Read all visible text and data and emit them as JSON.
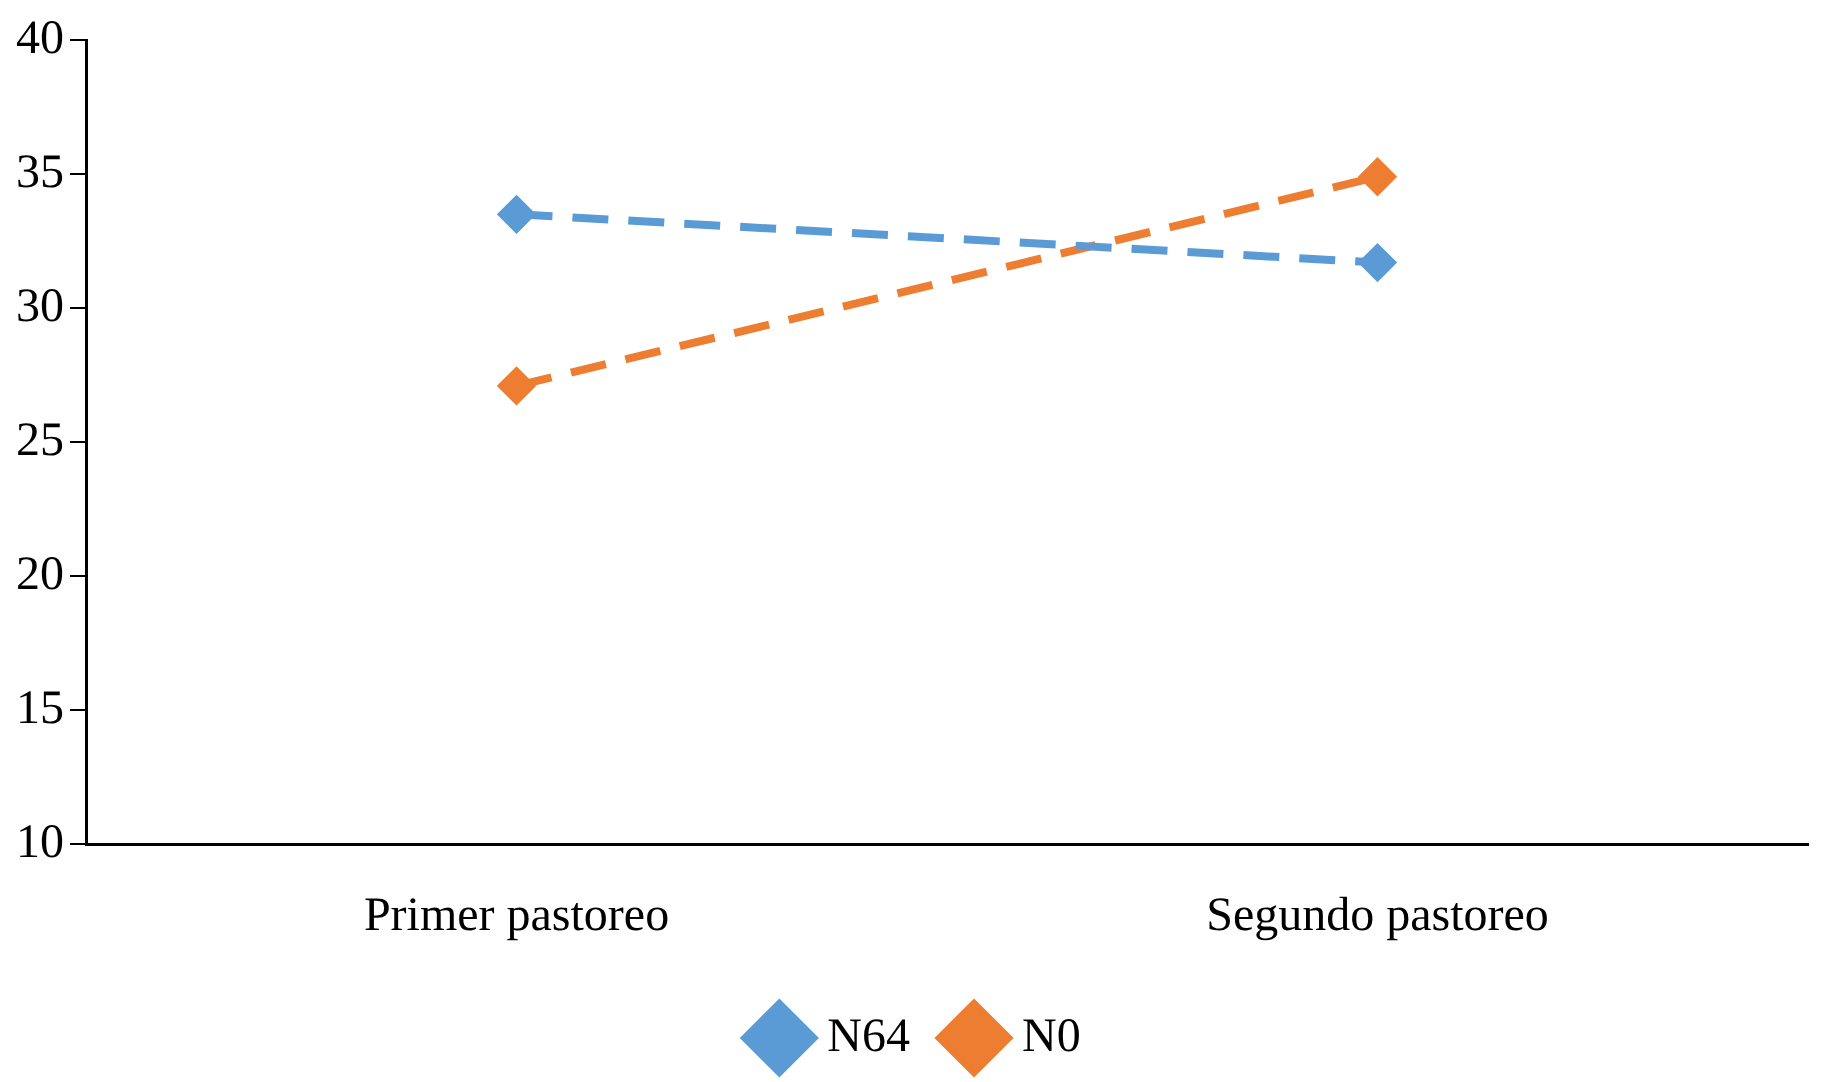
{
  "chart_data": {
    "type": "line",
    "categories": [
      "Primer pastoreo",
      "Segundo pastoreo"
    ],
    "series": [
      {
        "name": "N64",
        "color": "#5b9bd5",
        "values": [
          33.5,
          31.7
        ]
      },
      {
        "name": "N0",
        "color": "#ed7d31",
        "values": [
          27.1,
          34.9
        ]
      }
    ],
    "ylim": [
      10,
      40
    ],
    "yticks": [
      10,
      15,
      20,
      25,
      30,
      35,
      40
    ],
    "grid": false,
    "legend": "bottom",
    "marker": "diamond",
    "line_style": "dashed"
  }
}
